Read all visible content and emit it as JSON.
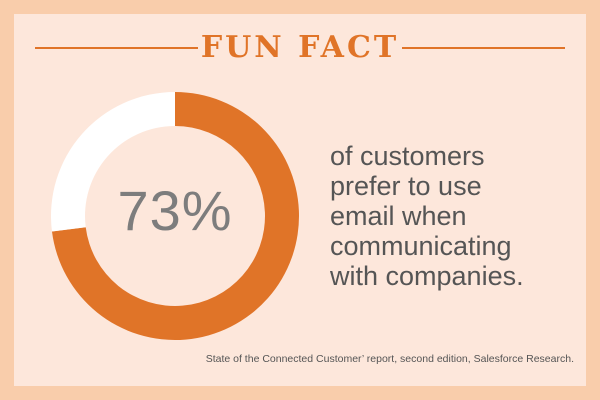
{
  "header": {
    "title": "FUN FACT"
  },
  "chart_data": {
    "type": "pie",
    "style": "donut",
    "values": [
      73,
      27
    ],
    "colors": [
      "#e07428",
      "#ffffff"
    ],
    "center_label": "73%"
  },
  "fact": {
    "lines": [
      "of customers",
      "prefer to use",
      "email when",
      "communicating",
      "with companies."
    ]
  },
  "source": "State of the Connected Customer’ report, second edition, Salesforce Research."
}
